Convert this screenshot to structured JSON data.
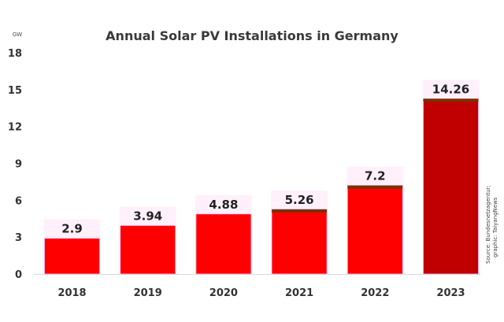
{
  "chart_data": {
    "type": "bar",
    "title": "Annual Solar PV Installations in Germany",
    "unit_label": "GW",
    "xlabel": "",
    "ylabel": "GW",
    "categories": [
      "2018",
      "2019",
      "2020",
      "2021",
      "2022",
      "2023"
    ],
    "values": [
      2.9,
      3.94,
      4.88,
      5.26,
      7.2,
      14.26
    ],
    "data_labels": [
      "2.9",
      "3.94",
      "4.88",
      "5.26",
      "7.2",
      "14.26"
    ],
    "ylim": [
      0,
      18
    ],
    "yticks": [
      0,
      3,
      6,
      9,
      12,
      15,
      18
    ],
    "ytick_labels": [
      "0",
      "3",
      "6",
      "9",
      "12",
      "15",
      "18"
    ],
    "grid": false,
    "legend": "none",
    "bar_colors": [
      "#ff0000",
      "#ff0000",
      "#ff0000",
      "#ff0000",
      "#ff0000",
      "#c00000"
    ],
    "source_lines": [
      "Source: Bundesnetzagentur;",
      "graphic: TaiyangNews"
    ]
  }
}
